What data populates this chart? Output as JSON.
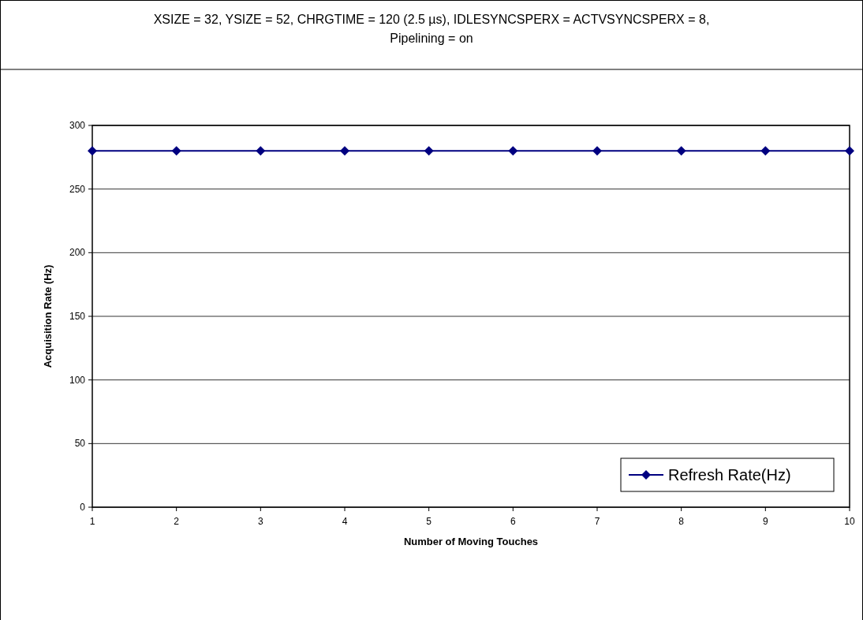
{
  "chart_data": {
    "type": "line",
    "title": "XSIZE = 32, YSIZE = 52, CHRGTIME = 120 (2.5 µs), IDLESYNCSPERX = ACTVSYNCSPERX = 8,\nPipelining = on",
    "xlabel": "Number of Moving Touches",
    "ylabel": "Acquisition Rate (Hz)",
    "x": [
      1,
      2,
      3,
      4,
      5,
      6,
      7,
      8,
      9,
      10
    ],
    "series": [
      {
        "name": "Refresh Rate(Hz)",
        "color": "#000080",
        "values": [
          280,
          280,
          280,
          280,
          280,
          280,
          280,
          280,
          280,
          280
        ]
      }
    ],
    "xlim": [
      1,
      10
    ],
    "xticks": [
      1,
      2,
      3,
      4,
      5,
      6,
      7,
      8,
      9,
      10
    ],
    "ylim": [
      0,
      300
    ],
    "yticks": [
      0,
      50,
      100,
      150,
      200,
      250,
      300
    ],
    "grid": "y",
    "legend": "bottom right",
    "marker": "diamond",
    "line_style": "solid"
  }
}
